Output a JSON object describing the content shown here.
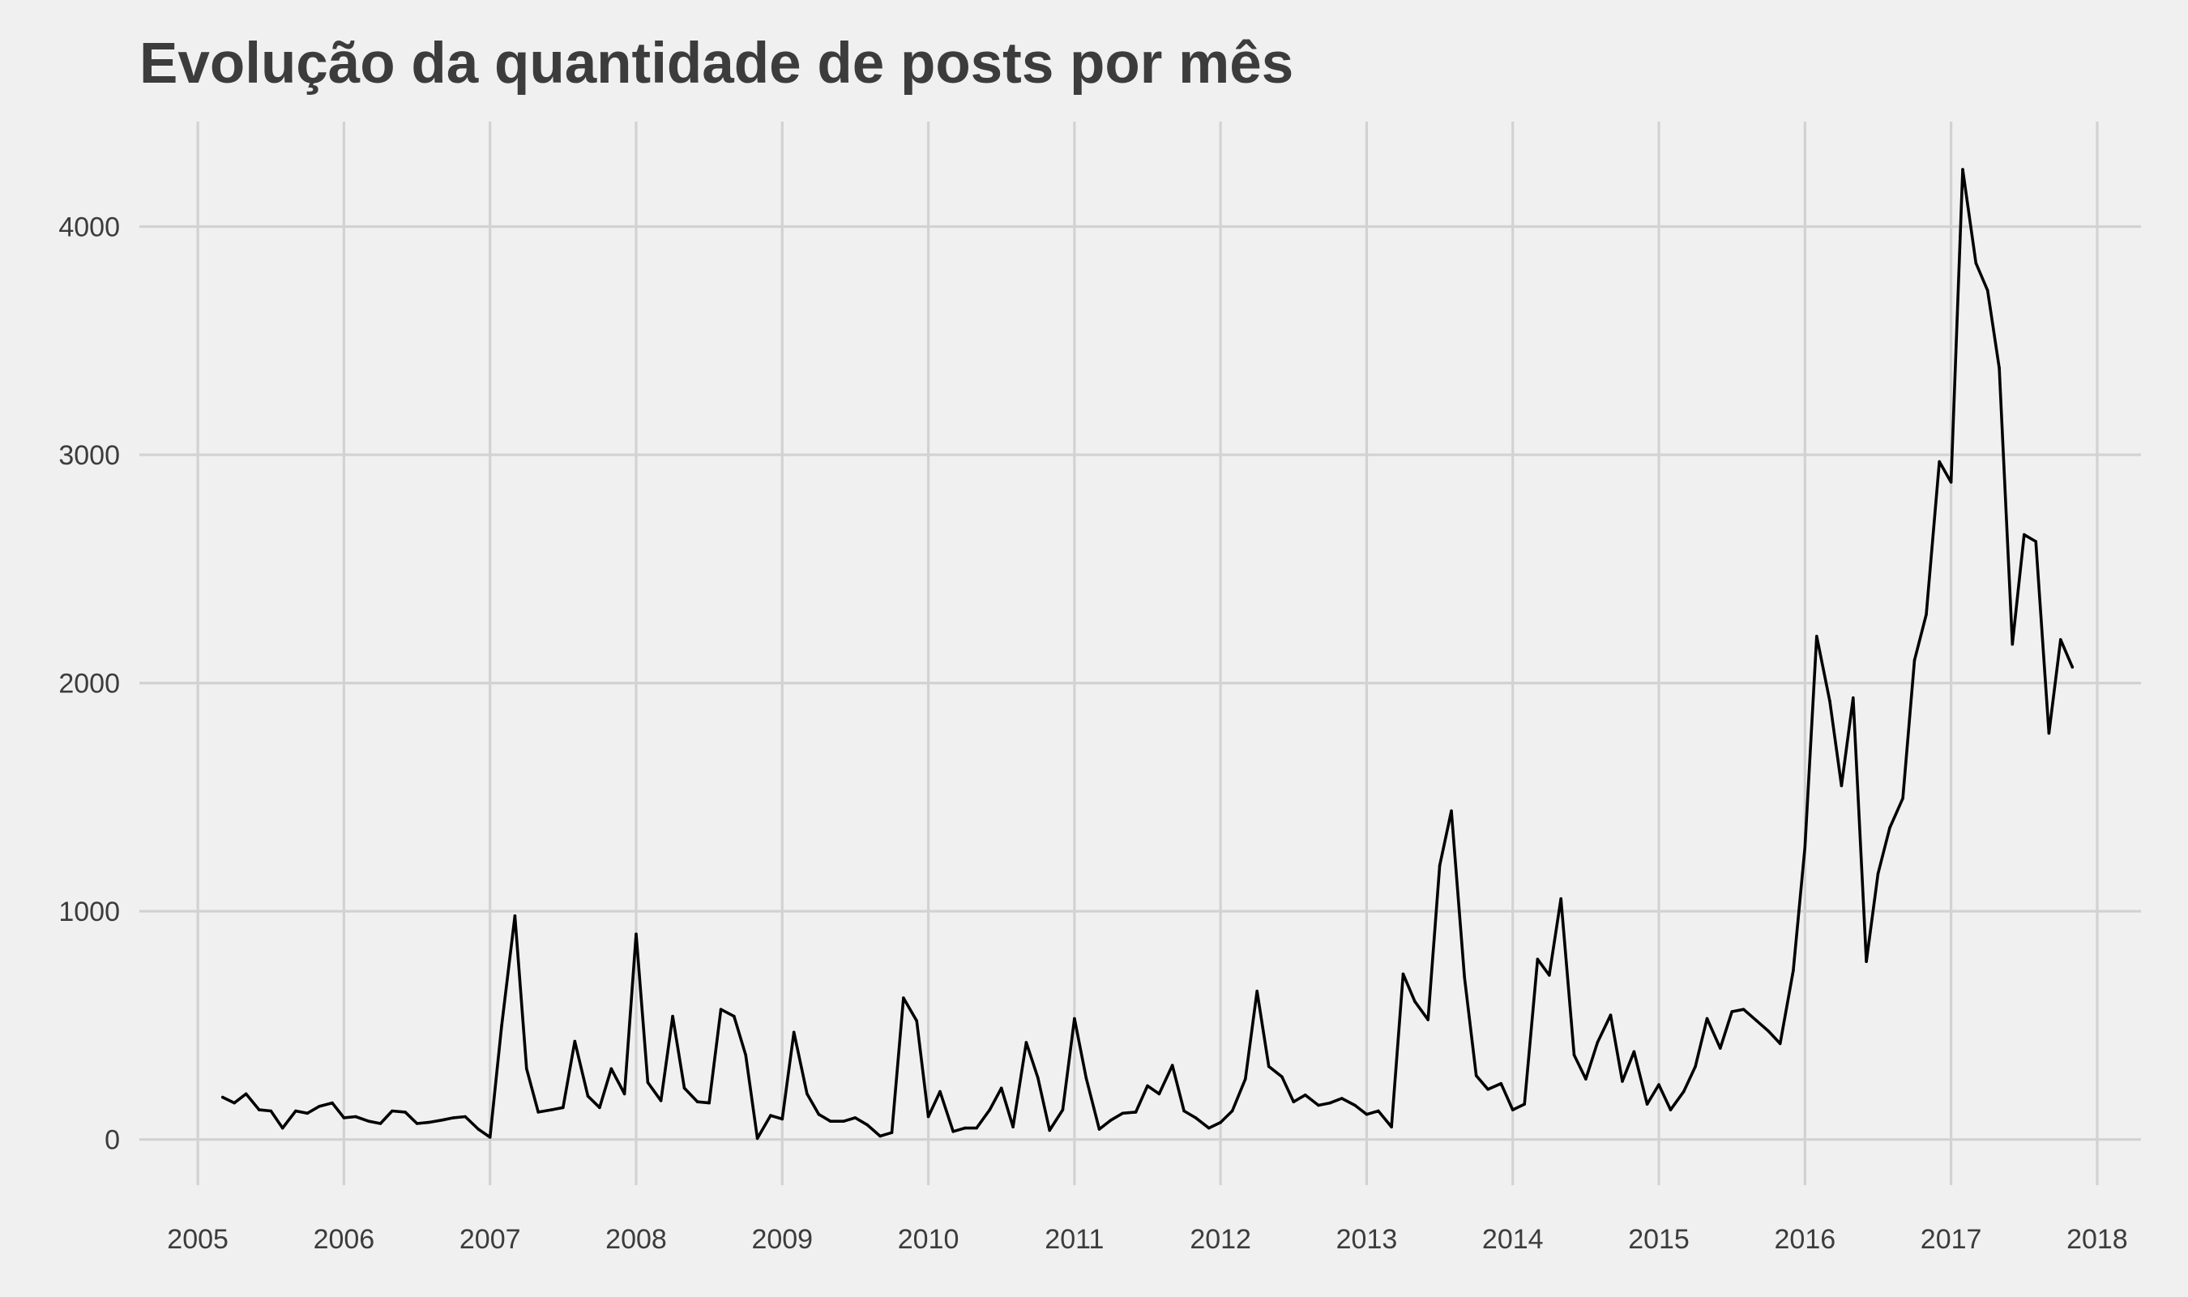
{
  "chart_data": {
    "type": "line",
    "title": "Evolução da quantidade de posts por mês",
    "xlabel": "",
    "ylabel": "",
    "x_unit": "year",
    "xlim": [
      2004.6,
      2018.3
    ],
    "ylim": [
      -200,
      4460
    ],
    "x_ticks": [
      2005,
      2006,
      2007,
      2008,
      2009,
      2010,
      2011,
      2012,
      2013,
      2014,
      2015,
      2016,
      2017,
      2018
    ],
    "x_tick_labels": [
      "2005",
      "2006",
      "2007",
      "2008",
      "2009",
      "2010",
      "2011",
      "2012",
      "2013",
      "2014",
      "2015",
      "2016",
      "2017",
      "2018"
    ],
    "y_ticks": [
      0,
      1000,
      2000,
      3000,
      4000
    ],
    "y_tick_labels": [
      "0",
      "1000",
      "2000",
      "3000",
      "4000"
    ],
    "grid": true,
    "line_color": "#000000",
    "series": [
      {
        "points": [
          [
            2005.17,
            185
          ],
          [
            2005.25,
            160
          ],
          [
            2005.33,
            200
          ],
          [
            2005.42,
            130
          ],
          [
            2005.5,
            125
          ],
          [
            2005.58,
            50
          ],
          [
            2005.67,
            125
          ],
          [
            2005.75,
            115
          ],
          [
            2005.83,
            145
          ],
          [
            2005.92,
            160
          ],
          [
            2006.0,
            95
          ],
          [
            2006.08,
            100
          ],
          [
            2006.17,
            80
          ],
          [
            2006.25,
            70
          ],
          [
            2006.33,
            125
          ],
          [
            2006.42,
            120
          ],
          [
            2006.5,
            70
          ],
          [
            2006.58,
            75
          ],
          [
            2006.67,
            85
          ],
          [
            2006.75,
            95
          ],
          [
            2006.83,
            100
          ],
          [
            2006.92,
            45
          ],
          [
            2007.0,
            10
          ],
          [
            2007.08,
            500
          ],
          [
            2007.17,
            980
          ],
          [
            2007.25,
            310
          ],
          [
            2007.33,
            120
          ],
          [
            2007.42,
            130
          ],
          [
            2007.5,
            140
          ],
          [
            2007.58,
            430
          ],
          [
            2007.67,
            190
          ],
          [
            2007.75,
            140
          ],
          [
            2007.83,
            310
          ],
          [
            2007.92,
            200
          ],
          [
            2008.0,
            900
          ],
          [
            2008.08,
            250
          ],
          [
            2008.17,
            170
          ],
          [
            2008.25,
            540
          ],
          [
            2008.33,
            225
          ],
          [
            2008.42,
            165
          ],
          [
            2008.5,
            160
          ],
          [
            2008.58,
            570
          ],
          [
            2008.67,
            540
          ],
          [
            2008.75,
            370
          ],
          [
            2008.83,
            5
          ],
          [
            2008.92,
            105
          ],
          [
            2009.0,
            90
          ],
          [
            2009.08,
            470
          ],
          [
            2009.17,
            200
          ],
          [
            2009.25,
            110
          ],
          [
            2009.33,
            80
          ],
          [
            2009.42,
            80
          ],
          [
            2009.5,
            95
          ],
          [
            2009.58,
            65
          ],
          [
            2009.67,
            15
          ],
          [
            2009.75,
            30
          ],
          [
            2009.83,
            620
          ],
          [
            2009.92,
            520
          ],
          [
            2010.0,
            100
          ],
          [
            2010.08,
            210
          ],
          [
            2010.17,
            35
          ],
          [
            2010.25,
            50
          ],
          [
            2010.33,
            50
          ],
          [
            2010.42,
            130
          ],
          [
            2010.5,
            225
          ],
          [
            2010.58,
            55
          ],
          [
            2010.67,
            425
          ],
          [
            2010.75,
            270
          ],
          [
            2010.83,
            40
          ],
          [
            2010.92,
            130
          ],
          [
            2011.0,
            530
          ],
          [
            2011.08,
            270
          ],
          [
            2011.17,
            45
          ],
          [
            2011.25,
            85
          ],
          [
            2011.33,
            115
          ],
          [
            2011.42,
            120
          ],
          [
            2011.5,
            235
          ],
          [
            2011.58,
            200
          ],
          [
            2011.67,
            325
          ],
          [
            2011.75,
            125
          ],
          [
            2011.83,
            95
          ],
          [
            2011.92,
            50
          ],
          [
            2012.0,
            75
          ],
          [
            2012.08,
            125
          ],
          [
            2012.17,
            265
          ],
          [
            2012.25,
            650
          ],
          [
            2012.33,
            320
          ],
          [
            2012.42,
            275
          ],
          [
            2012.5,
            165
          ],
          [
            2012.58,
            195
          ],
          [
            2012.67,
            150
          ],
          [
            2012.75,
            160
          ],
          [
            2012.83,
            180
          ],
          [
            2012.92,
            150
          ],
          [
            2013.0,
            110
          ],
          [
            2013.08,
            125
          ],
          [
            2013.17,
            55
          ],
          [
            2013.25,
            725
          ],
          [
            2013.33,
            605
          ],
          [
            2013.42,
            525
          ],
          [
            2013.5,
            1200
          ],
          [
            2013.58,
            1440
          ],
          [
            2013.67,
            710
          ],
          [
            2013.75,
            280
          ],
          [
            2013.83,
            220
          ],
          [
            2013.92,
            245
          ],
          [
            2014.0,
            130
          ],
          [
            2014.08,
            155
          ],
          [
            2014.17,
            790
          ],
          [
            2014.25,
            720
          ],
          [
            2014.33,
            1055
          ],
          [
            2014.42,
            370
          ],
          [
            2014.5,
            265
          ],
          [
            2014.58,
            425
          ],
          [
            2014.67,
            545
          ],
          [
            2014.75,
            255
          ],
          [
            2014.83,
            385
          ],
          [
            2014.92,
            155
          ],
          [
            2015.0,
            240
          ],
          [
            2015.08,
            130
          ],
          [
            2015.17,
            210
          ],
          [
            2015.25,
            320
          ],
          [
            2015.33,
            530
          ],
          [
            2015.42,
            400
          ],
          [
            2015.5,
            560
          ],
          [
            2015.58,
            570
          ],
          [
            2015.67,
            520
          ],
          [
            2015.75,
            475
          ],
          [
            2015.83,
            420
          ],
          [
            2015.92,
            740
          ],
          [
            2016.0,
            1280
          ],
          [
            2016.08,
            2205
          ],
          [
            2016.17,
            1920
          ],
          [
            2016.25,
            1550
          ],
          [
            2016.33,
            1935
          ],
          [
            2016.42,
            780
          ],
          [
            2016.5,
            1165
          ],
          [
            2016.58,
            1365
          ],
          [
            2016.67,
            1495
          ],
          [
            2016.75,
            2100
          ],
          [
            2016.83,
            2300
          ],
          [
            2016.92,
            2970
          ],
          [
            2017.0,
            2880
          ],
          [
            2017.08,
            4250
          ],
          [
            2017.17,
            3840
          ],
          [
            2017.25,
            3720
          ],
          [
            2017.33,
            3380
          ],
          [
            2017.42,
            2170
          ],
          [
            2017.5,
            2650
          ],
          [
            2017.58,
            2620
          ],
          [
            2017.67,
            1780
          ],
          [
            2017.75,
            2190
          ],
          [
            2017.83,
            2070
          ]
        ]
      }
    ]
  }
}
